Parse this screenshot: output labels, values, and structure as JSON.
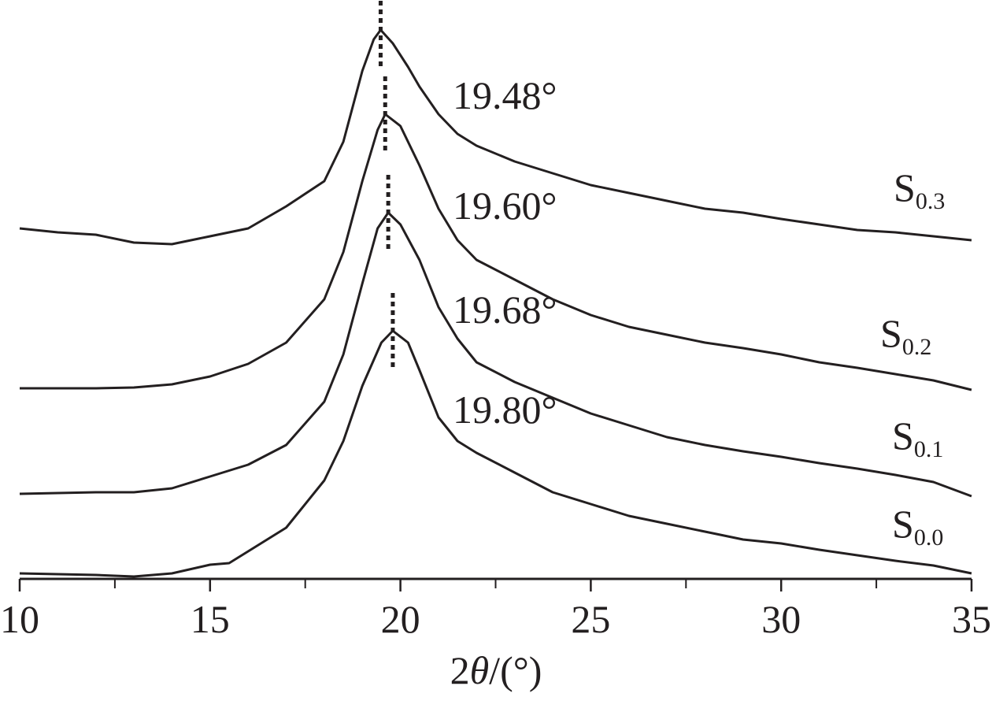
{
  "chart_data": {
    "type": "line",
    "x_label": "2θ/(°)",
    "xlim": [
      10,
      35
    ],
    "xticks": [
      10,
      15,
      20,
      25,
      30,
      35
    ],
    "xminorticks": [
      12.5,
      17.5,
      22.5,
      27.5,
      32.5
    ],
    "ylim": [
      0,
      735
    ],
    "color": "#231f20",
    "series": [
      {
        "name": "S0.0",
        "peak": 19.8,
        "peak_label": "19.80°",
        "x": [
          10,
          12,
          13,
          14,
          15,
          15.5,
          16,
          17,
          18,
          18.5,
          19,
          19.5,
          19.8,
          20.2,
          20.5,
          21,
          21.5,
          22,
          23,
          24,
          25,
          26,
          27,
          28,
          29,
          30,
          31,
          32,
          33,
          34,
          35
        ],
        "values": [
          7,
          5,
          3,
          7,
          18,
          20,
          35,
          65,
          125,
          175,
          245,
          300,
          315,
          300,
          265,
          205,
          175,
          160,
          135,
          110,
          95,
          80,
          70,
          60,
          50,
          45,
          37,
          30,
          23,
          17,
          7
        ]
      },
      {
        "name": "S0.1",
        "peak": 19.68,
        "peak_label": "19.68°",
        "x": [
          10,
          12,
          13,
          14,
          15,
          16,
          17,
          18,
          18.5,
          19,
          19.4,
          19.68,
          20,
          20.5,
          21,
          21.5,
          22,
          23,
          24,
          25,
          26,
          27,
          28,
          29,
          30,
          31,
          32,
          33,
          34,
          35
        ],
        "values": [
          108,
          110,
          110,
          115,
          130,
          145,
          170,
          225,
          285,
          375,
          445,
          465,
          450,
          405,
          345,
          305,
          275,
          250,
          230,
          210,
          195,
          180,
          170,
          162,
          155,
          147,
          140,
          132,
          123,
          105
        ]
      },
      {
        "name": "S0.2",
        "peak": 19.6,
        "peak_label": "19.60°",
        "x": [
          10,
          12,
          13,
          14,
          15,
          16,
          17,
          18,
          18.5,
          19,
          19.4,
          19.6,
          20,
          20.5,
          21,
          21.5,
          22,
          23,
          24,
          25,
          26,
          27,
          28,
          29,
          30,
          31,
          32,
          33,
          34,
          35
        ],
        "values": [
          242,
          242,
          243,
          247,
          257,
          273,
          300,
          355,
          415,
          505,
          570,
          590,
          575,
          525,
          470,
          430,
          405,
          380,
          355,
          335,
          320,
          310,
          300,
          293,
          285,
          275,
          268,
          260,
          252,
          240
        ]
      },
      {
        "name": "S0.3",
        "peak": 19.48,
        "peak_label": "19.48°",
        "x": [
          10,
          11,
          12,
          13,
          14,
          15,
          16,
          17,
          18,
          18.5,
          19,
          19.3,
          19.48,
          19.8,
          20.2,
          20.5,
          21,
          21.5,
          22,
          23,
          24,
          25,
          26,
          27,
          28,
          29,
          30,
          31,
          32,
          33,
          34,
          35
        ],
        "values": [
          445,
          440,
          437,
          427,
          425,
          435,
          445,
          473,
          505,
          555,
          645,
          685,
          697,
          680,
          650,
          625,
          590,
          565,
          550,
          530,
          515,
          500,
          490,
          480,
          470,
          465,
          457,
          450,
          443,
          440,
          435,
          430
        ]
      }
    ]
  }
}
